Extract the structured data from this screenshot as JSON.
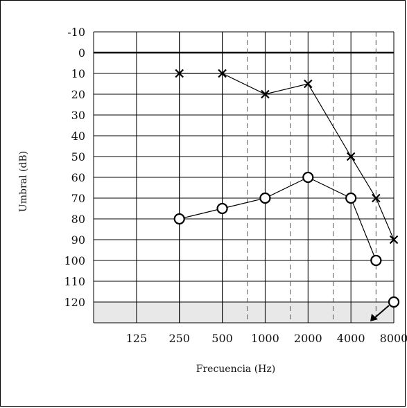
{
  "chart_data": {
    "type": "line",
    "xlabel": "Frecuencia (Hz)",
    "ylabel": "Umbral (dB)",
    "x_categories": [
      "125",
      "250",
      "500",
      "1000",
      "2000",
      "4000",
      "8000"
    ],
    "x_intermediate": [
      "750",
      "1500",
      "3000",
      "6000"
    ],
    "y_ticks": [
      "-10",
      "0",
      "10",
      "20",
      "30",
      "40",
      "50",
      "60",
      "70",
      "80",
      "90",
      "100",
      "110",
      "120"
    ],
    "ylim": [
      -10,
      130
    ],
    "y_inverted": true,
    "shaded_band": [
      120,
      130
    ],
    "series": [
      {
        "marker": "x",
        "points": [
          {
            "x": "250",
            "y": 10
          },
          {
            "x": "500",
            "y": 10
          },
          {
            "x": "1000",
            "y": 20
          },
          {
            "x": "2000",
            "y": 15
          },
          {
            "x": "4000",
            "y": 50
          },
          {
            "x": "6000",
            "y": 70
          },
          {
            "x": "8000",
            "y": 90
          }
        ]
      },
      {
        "marker": "o",
        "points": [
          {
            "x": "250",
            "y": 80
          },
          {
            "x": "500",
            "y": 75
          },
          {
            "x": "1000",
            "y": 70
          },
          {
            "x": "2000",
            "y": 60
          },
          {
            "x": "4000",
            "y": 70
          },
          {
            "x": "6000",
            "y": 100
          }
        ]
      },
      {
        "marker": "o",
        "no_response": true,
        "points": [
          {
            "x": "8000",
            "y": 120
          }
        ]
      }
    ]
  }
}
